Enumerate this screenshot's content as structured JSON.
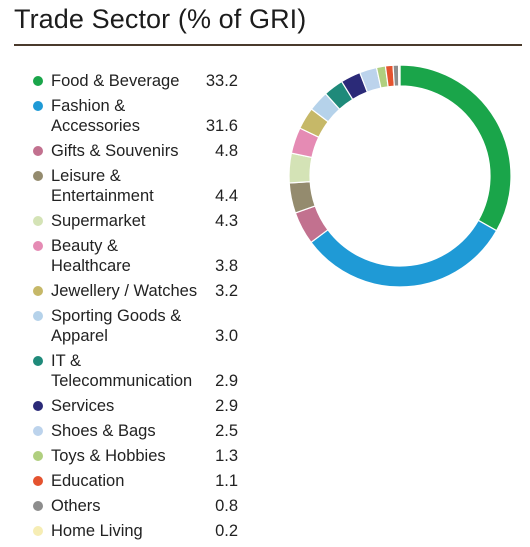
{
  "chart_data": {
    "type": "pie",
    "title": "Trade Sector (% of GRI)",
    "legend_position": "left",
    "categories": [
      "Food & Beverage",
      "Fashion & Accessories",
      "Gifts & Souvenirs",
      "Leisure & Entertainment",
      "Supermarket",
      "Beauty & Healthcare",
      "Jewellery / Watches",
      "Sporting Goods & Apparel",
      "IT & Telecommunication",
      "Services",
      "Shoes & Bags",
      "Toys & Hobbies",
      "Education",
      "Others",
      "Home Living"
    ],
    "series": [
      {
        "values": [
          33.2,
          31.6,
          4.8,
          4.4,
          4.3,
          3.8,
          3.2,
          3.0,
          2.9,
          2.9,
          2.5,
          1.3,
          1.1,
          0.8,
          0.2
        ]
      }
    ],
    "legend": [
      {
        "lines": [
          "Food & Beverage"
        ],
        "value": "33.2",
        "color": "#1aa54a"
      },
      {
        "lines": [
          "Fashion &",
          "Accessories"
        ],
        "value": "31.6",
        "color": "#1f9ad6"
      },
      {
        "lines": [
          "Gifts & Souvenirs"
        ],
        "value": "4.8",
        "color": "#c2718f"
      },
      {
        "lines": [
          "Leisure &",
          "Entertainment"
        ],
        "value": "4.4",
        "color": "#948b6e"
      },
      {
        "lines": [
          "Supermarket"
        ],
        "value": "4.3",
        "color": "#d4e3b6"
      },
      {
        "lines": [
          "Beauty &",
          "Healthcare"
        ],
        "value": "3.8",
        "color": "#e58bb4"
      },
      {
        "lines": [
          "Jewellery / Watches"
        ],
        "value": "3.2",
        "color": "#c6b868"
      },
      {
        "lines": [
          "Sporting Goods &",
          "Apparel"
        ],
        "value": "3.0",
        "color": "#b5d2ea"
      },
      {
        "lines": [
          "IT &",
          "Telecommunication"
        ],
        "value": "2.9",
        "color": "#1f8a7a"
      },
      {
        "lines": [
          "Services"
        ],
        "value": "2.9",
        "color": "#2b2a78"
      },
      {
        "lines": [
          "Shoes & Bags"
        ],
        "value": "2.5",
        "color": "#bcd3ec"
      },
      {
        "lines": [
          "Toys & Hobbies"
        ],
        "value": "1.3",
        "color": "#b0cf7f"
      },
      {
        "lines": [
          "Education"
        ],
        "value": "1.1",
        "color": "#e4532f"
      },
      {
        "lines": [
          "Others"
        ],
        "value": "0.8",
        "color": "#8d8d8d"
      },
      {
        "lines": [
          "Home Living"
        ],
        "value": "0.2",
        "color": "#f6edb4"
      }
    ]
  }
}
